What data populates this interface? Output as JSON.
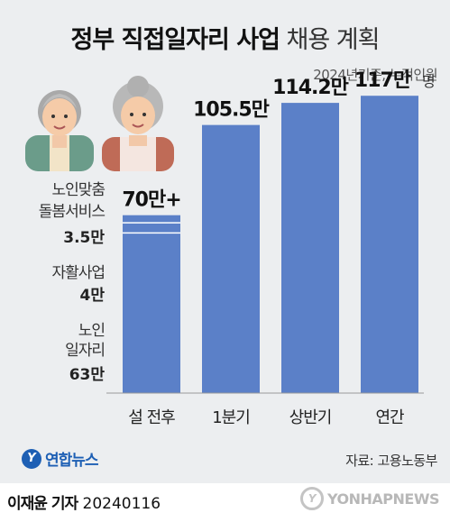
{
  "header": {
    "title_bold": "정부 직접일자리 사업",
    "title_light": "채용 계획",
    "subtitle": "2024년기준, 누적인원"
  },
  "chart_data": {
    "type": "bar",
    "categories": [
      "설 전후",
      "1분기",
      "상반기",
      "연간"
    ],
    "values": [
      70,
      105.5,
      114.2,
      117
    ],
    "value_labels": [
      "70만+",
      "105.5만",
      "114.2만",
      "117만"
    ],
    "unit": "명",
    "ylim": [
      0,
      120
    ],
    "bar_color": "#5b80c8",
    "breakdown": {
      "category": "설 전후",
      "segments": [
        {
          "name_lines": [
            "노인",
            "일자리"
          ],
          "value": 63,
          "label": "63만"
        },
        {
          "name_lines": [
            "자활사업"
          ],
          "value": 4,
          "label": "4만"
        },
        {
          "name_lines": [
            "노인맞춤",
            "돌봄서비스"
          ],
          "value": 3.5,
          "label": "3.5만"
        }
      ]
    }
  },
  "footer": {
    "logo_text": "연합뉴스",
    "source": "자료: 고용노동부",
    "credit_name": "이재윤 기자",
    "credit_date": "20240116",
    "watermark": "YONHAPNEWS"
  }
}
